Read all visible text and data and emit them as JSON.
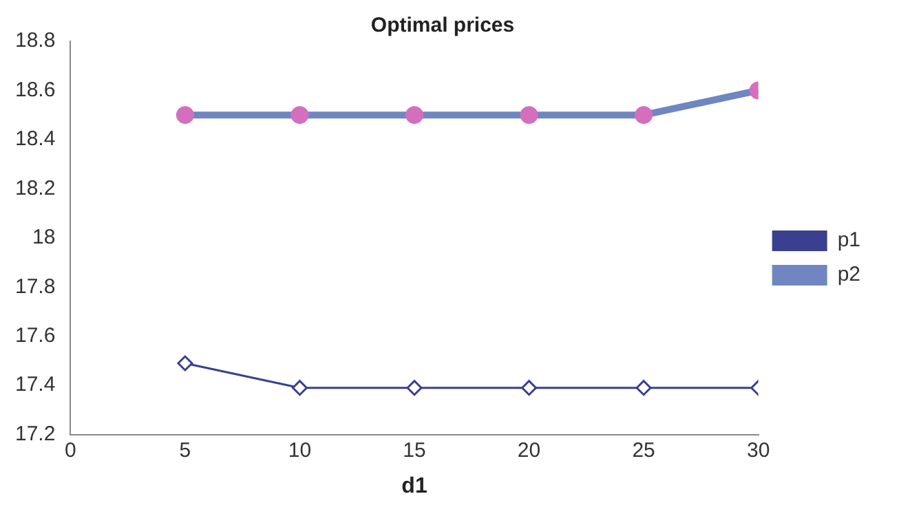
{
  "chart_data": {
    "type": "line",
    "title": "Optimal prices",
    "xlabel": "d1",
    "x": [
      5,
      10,
      15,
      20,
      25,
      30
    ],
    "series": [
      {
        "name": "p1",
        "color": "#3a3f8f",
        "marker": "diamond",
        "values": [
          17.49,
          17.39,
          17.39,
          17.39,
          17.39,
          17.39
        ]
      },
      {
        "name": "p2",
        "color": "#6f86c0",
        "marker": "circle",
        "colors": [
          "#d46fbd",
          "#d46fbd",
          "#d46fbd",
          "#d46fbd",
          "#d46fbd",
          "#d46fbd"
        ],
        "values": [
          18.5,
          18.5,
          18.5,
          18.5,
          18.5,
          18.6
        ]
      }
    ],
    "xlim": [
      0,
      30
    ],
    "xticks": [
      0,
      5,
      10,
      15,
      20,
      25,
      30
    ],
    "ylim": [
      17.2,
      18.8
    ],
    "yticks": [
      17.2,
      17.4,
      17.6,
      17.8,
      18,
      18.2,
      18.4,
      18.6,
      18.8
    ],
    "grid": false,
    "legend": "right"
  }
}
